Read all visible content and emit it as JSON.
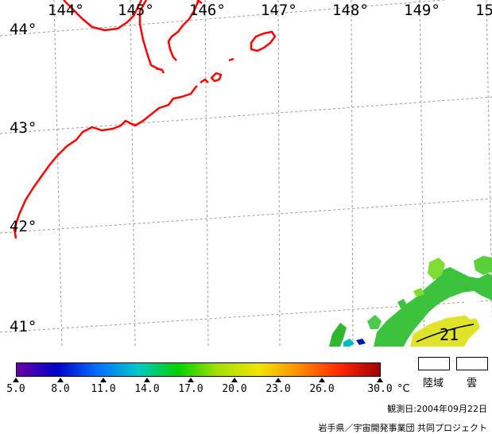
{
  "map": {
    "longitude_labels": [
      "144°",
      "145°",
      "146°",
      "147°",
      "148°",
      "149°",
      "15"
    ],
    "latitude_labels": [
      "44°",
      "43°",
      "42°",
      "41°"
    ],
    "contour_label": "21",
    "coastline_color": "#ff0000",
    "graticule_color": "#999999"
  },
  "legend": {
    "ticks": [
      "5.0",
      "8.0",
      "11.0",
      "14.0",
      "17.0",
      "20.0",
      "23.0",
      "26.0",
      "30.0"
    ],
    "unit": "°C",
    "key_land": "陸域",
    "key_cloud": "雲",
    "colorbar_colors": [
      "#6a00a8",
      "#0000c8",
      "#0070ff",
      "#00c8c8",
      "#00d200",
      "#a8e000",
      "#f0e600",
      "#ff8c00",
      "#ff2800",
      "#a00000"
    ]
  },
  "footer": {
    "observation_date": "観測日:2004年09月22日",
    "credit": "岩手県／宇宙開発事業団  共同プロジェクト"
  }
}
